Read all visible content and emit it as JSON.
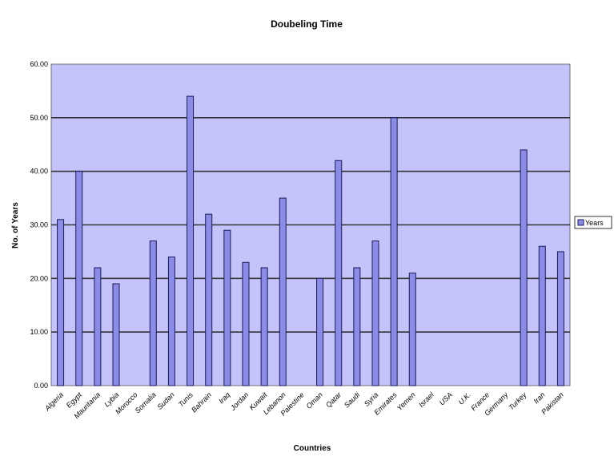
{
  "chart_data": {
    "type": "bar",
    "title": "Doubeling Time",
    "xlabel": "Countries",
    "ylabel": "No. of Years",
    "ylim": [
      0,
      60
    ],
    "yticks": [
      "0.00",
      "10.00",
      "20.00",
      "30.00",
      "40.00",
      "50.00",
      "60.00"
    ],
    "grid": true,
    "legend_position": "right",
    "categories": [
      "Algeria",
      "Egypt",
      "Mauritania",
      "Lybia",
      "Morocco",
      "Somalia",
      "Sudan",
      "Tunis",
      "Bahrain",
      "Iraq",
      "Jordan",
      "Kuwait",
      "Lebanon",
      "Palestine",
      "Oman",
      "Qatar",
      "Saudi",
      "Syria",
      "Emirates",
      "Yemen",
      "Israel",
      "USA",
      "U.K.",
      "France",
      "Germany",
      "Turkey",
      "Iran",
      "Pakistan"
    ],
    "series": [
      {
        "name": "Years",
        "values": [
          31,
          40,
          22,
          19,
          0,
          27,
          24,
          54,
          32,
          29,
          23,
          22,
          35,
          0,
          20,
          42,
          22,
          27,
          50,
          21,
          0,
          0,
          0,
          0,
          0,
          44,
          26,
          25
        ]
      }
    ],
    "colors": {
      "plot_bg": "#c4c4fa",
      "bar": "#8c8ce6",
      "bar_edge": "#1a1a5a",
      "grid": "#333333"
    }
  }
}
